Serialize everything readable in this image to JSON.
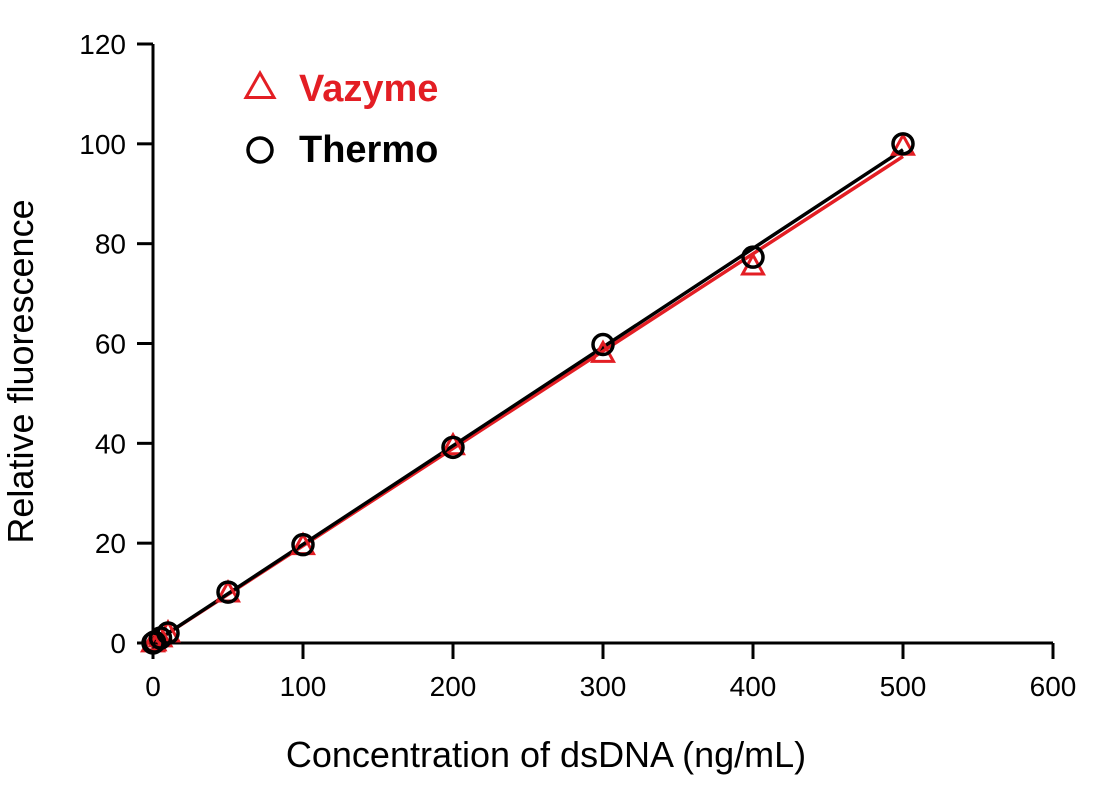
{
  "chart_data": {
    "type": "scatter",
    "xlabel": "Concentration of dsDNA (ng/mL)",
    "ylabel": "Relative fluorescence",
    "xlim": [
      0,
      600
    ],
    "ylim": [
      0,
      120
    ],
    "x_ticks": [
      0,
      100,
      200,
      300,
      400,
      500,
      600
    ],
    "y_ticks": [
      0,
      20,
      40,
      60,
      80,
      100,
      120
    ],
    "x_tick_labels": [
      "0",
      "100",
      "200",
      "300",
      "400",
      "500",
      "600"
    ],
    "y_tick_labels": [
      "0",
      "20",
      "40",
      "60",
      "80",
      "100",
      "120"
    ],
    "grid": false,
    "legend_position": "top-left",
    "series": [
      {
        "name": "Vazyme",
        "marker": "triangle",
        "color": "#e31e24",
        "fit_line": true,
        "points": [
          {
            "x": 0,
            "y": 0
          },
          {
            "x": 1,
            "y": 0.2
          },
          {
            "x": 5,
            "y": 1.0
          },
          {
            "x": 10,
            "y": 2.0
          },
          {
            "x": 50,
            "y": 10.0
          },
          {
            "x": 100,
            "y": 19.5
          },
          {
            "x": 200,
            "y": 39.5
          },
          {
            "x": 300,
            "y": 58.0
          },
          {
            "x": 400,
            "y": 75.5
          },
          {
            "x": 500,
            "y": 99.5
          }
        ]
      },
      {
        "name": "Thermo",
        "marker": "circle",
        "color": "#000000",
        "fit_line": true,
        "points": [
          {
            "x": 0,
            "y": 0
          },
          {
            "x": 1,
            "y": 0.2
          },
          {
            "x": 5,
            "y": 1.0
          },
          {
            "x": 10,
            "y": 2.0
          },
          {
            "x": 50,
            "y": 10.2
          },
          {
            "x": 100,
            "y": 19.7
          },
          {
            "x": 200,
            "y": 39.2
          },
          {
            "x": 300,
            "y": 59.8
          },
          {
            "x": 400,
            "y": 77.3
          },
          {
            "x": 500,
            "y": 100.0
          }
        ]
      }
    ]
  }
}
